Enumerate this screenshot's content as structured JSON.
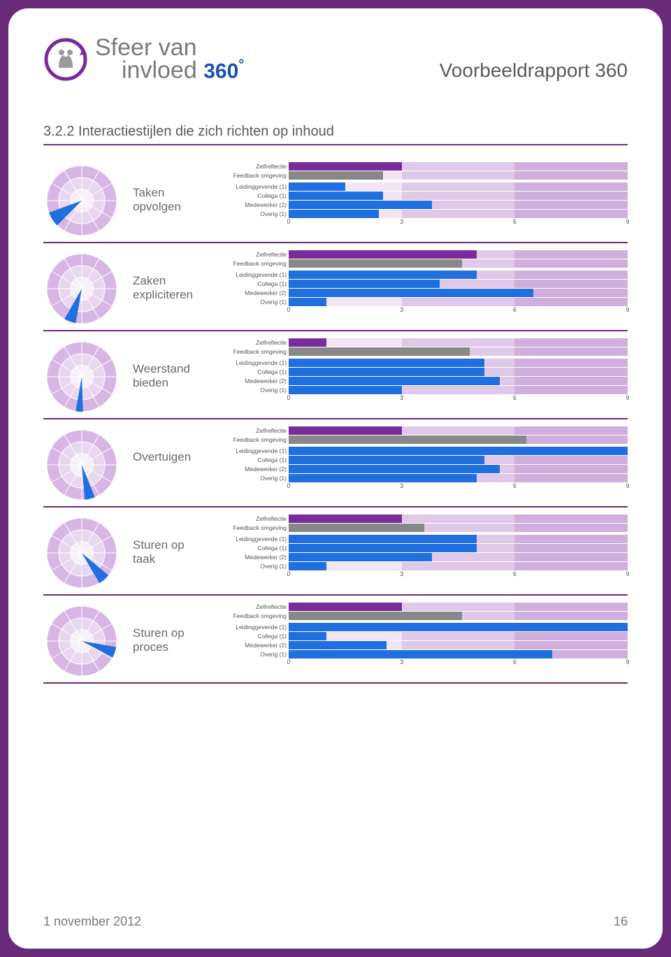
{
  "brand": {
    "line1": "Sfeer van",
    "line2": "invloed",
    "suffix": "360",
    "degree": "°"
  },
  "report_title": "Voorbeeldrapport 360",
  "section_heading": "3.2.2 Interactiestijlen die zich richten op inhoud",
  "colors": {
    "purple": "#7a2a9a",
    "gray": "#888888",
    "blue": "#1f6fe0",
    "radar_outer": "#d7b6e3",
    "radar_inner": "#e9d6f0",
    "radar_center": "#f6edf9",
    "radar_grid": "#ffffff",
    "radar_wedge": "#1f6fe0",
    "bg_low": "#f2e6f5",
    "bg_mid": "#e0c8e8",
    "bg_high": "#d0aedd",
    "rule": "#6a2a7a"
  },
  "axis": {
    "min": 0,
    "max": 9,
    "ticks": [
      0,
      3,
      6,
      9
    ]
  },
  "bar_labels": {
    "zelf": "Zelfreflectie",
    "feedback": "Feedback omgeving",
    "leiding": "Leidinggevende (1)",
    "collega": "Collega (1)",
    "medewerker": "Medewerker (2)",
    "overig": "Overig (1)"
  },
  "rows": [
    {
      "title": "Taken opvolgen",
      "radar_angle_start": 225,
      "radar_angle_end": 250,
      "radar_extent": 1.0,
      "bars": {
        "zelf": 3.0,
        "feedback": 2.5,
        "leiding": 1.5,
        "collega": 2.5,
        "medewerker": 3.8,
        "overig": 2.4
      }
    },
    {
      "title": "Zaken expliciteren",
      "radar_angle_start": 190,
      "radar_angle_end": 210,
      "radar_extent": 1.0,
      "bars": {
        "zelf": 5.0,
        "feedback": 4.6,
        "leiding": 5.0,
        "collega": 4.0,
        "medewerker": 6.5,
        "overig": 1.0
      }
    },
    {
      "title": "Weerstand bieden",
      "radar_angle_start": 178,
      "radar_angle_end": 190,
      "radar_extent": 1.0,
      "bars": {
        "zelf": 1.0,
        "feedback": 4.8,
        "leiding": 5.2,
        "collega": 5.2,
        "medewerker": 5.6,
        "overig": 3.0
      }
    },
    {
      "title": "Overtuigen",
      "radar_angle_start": 158,
      "radar_angle_end": 175,
      "radar_extent": 1.0,
      "bars": {
        "zelf": 3.0,
        "feedback": 6.3,
        "leiding": 9.0,
        "collega": 5.2,
        "medewerker": 5.6,
        "overig": 5.0
      }
    },
    {
      "title": "Sturen op taak",
      "radar_angle_start": 130,
      "radar_angle_end": 150,
      "radar_extent": 1.0,
      "bars": {
        "zelf": 3.0,
        "feedback": 3.6,
        "leiding": 5.0,
        "collega": 5.0,
        "medewerker": 3.8,
        "overig": 1.0
      }
    },
    {
      "title": "Sturen op proces",
      "radar_angle_start": 100,
      "radar_angle_end": 118,
      "radar_extent": 1.0,
      "bars": {
        "zelf": 3.0,
        "feedback": 4.6,
        "leiding": 9.0,
        "collega": 1.0,
        "medewerker": 2.6,
        "overig": 7.0
      }
    }
  ],
  "footer": {
    "date": "1 november 2012",
    "page": "16"
  }
}
